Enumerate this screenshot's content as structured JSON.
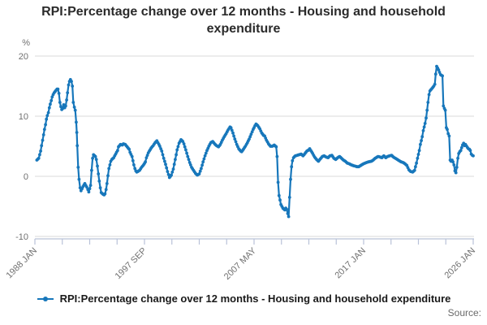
{
  "header": {
    "title": "RPI:Percentage change over 12 months - Housing and household expenditure"
  },
  "footer": {
    "source_label": "Source:"
  },
  "colors": {
    "series_blue": "#1777bb",
    "gridline": "#d9d9d9",
    "axis": "#b9c2d8",
    "tick_text": "#707070",
    "title_text": "#2b2b2b",
    "legend_text": "#1a1a1a",
    "source_text": "#6a6a6a",
    "background": "#ffffff"
  },
  "chart_data": {
    "type": "line",
    "title": "RPI:Percentage change over 12 months - Housing and household expenditure",
    "unit_label": "%",
    "xlabel": "",
    "ylabel": "%",
    "y_ticks": [
      20,
      10,
      0,
      -10
    ],
    "ylim": [
      -10.4,
      20.1
    ],
    "x_range_years": [
      1988.0,
      2026.1
    ],
    "x_tick_labels": [
      "1988 JAN",
      "1997 SEP",
      "2007 MAY",
      "2017 JAN",
      "2026 JAN"
    ],
    "x_minor_tick_count": 17,
    "grid": "horizontal",
    "legend_position": "bottom",
    "marker": "circle",
    "series": [
      {
        "name": "RPI:Percentage change over 12 months - Housing and household expenditure",
        "color": "#1777bb",
        "points": [
          [
            1988.17,
            2.7
          ],
          [
            1988.33,
            3.0
          ],
          [
            1988.5,
            4.2
          ],
          [
            1988.58,
            5.1
          ],
          [
            1988.67,
            6.0
          ],
          [
            1988.75,
            6.9
          ],
          [
            1988.83,
            7.8
          ],
          [
            1988.92,
            8.6
          ],
          [
            1989.0,
            9.5
          ],
          [
            1989.08,
            10.1
          ],
          [
            1989.17,
            10.6
          ],
          [
            1989.25,
            11.4
          ],
          [
            1989.33,
            12.0
          ],
          [
            1989.42,
            12.6
          ],
          [
            1989.5,
            13.2
          ],
          [
            1989.58,
            13.6
          ],
          [
            1989.67,
            13.9
          ],
          [
            1989.75,
            14.1
          ],
          [
            1989.83,
            14.3
          ],
          [
            1989.92,
            14.5
          ],
          [
            1990.0,
            14.5
          ],
          [
            1990.08,
            13.8
          ],
          [
            1990.17,
            12.3
          ],
          [
            1990.25,
            11.6
          ],
          [
            1990.33,
            11.1
          ],
          [
            1990.42,
            11.3
          ],
          [
            1990.5,
            11.9
          ],
          [
            1990.58,
            11.4
          ],
          [
            1990.67,
            11.7
          ],
          [
            1990.75,
            12.7
          ],
          [
            1990.83,
            13.9
          ],
          [
            1990.92,
            15.2
          ],
          [
            1991.0,
            15.8
          ],
          [
            1991.08,
            16.1
          ],
          [
            1991.17,
            15.8
          ],
          [
            1991.25,
            15.0
          ],
          [
            1991.33,
            12.3
          ],
          [
            1991.42,
            11.5
          ],
          [
            1991.5,
            11.0
          ],
          [
            1991.58,
            9.0
          ],
          [
            1991.63,
            7.3
          ],
          [
            1991.67,
            5.1
          ],
          [
            1991.75,
            1.5
          ],
          [
            1991.83,
            -0.5
          ],
          [
            1991.92,
            -1.9
          ],
          [
            1992.0,
            -2.4
          ],
          [
            1992.17,
            -1.7
          ],
          [
            1992.33,
            -1.2
          ],
          [
            1992.5,
            -1.8
          ],
          [
            1992.67,
            -2.6
          ],
          [
            1992.83,
            -1.5
          ],
          [
            1992.92,
            1.0
          ],
          [
            1993.0,
            3.0
          ],
          [
            1993.08,
            3.6
          ],
          [
            1993.25,
            3.3
          ],
          [
            1993.33,
            2.8
          ],
          [
            1993.42,
            1.7
          ],
          [
            1993.5,
            0.4
          ],
          [
            1993.58,
            -0.8
          ],
          [
            1993.67,
            -1.9
          ],
          [
            1993.75,
            -2.7
          ],
          [
            1993.92,
            -3.0
          ],
          [
            1994.0,
            -3.1
          ],
          [
            1994.08,
            -2.9
          ],
          [
            1994.17,
            -2.2
          ],
          [
            1994.25,
            -1.2
          ],
          [
            1994.33,
            0.1
          ],
          [
            1994.42,
            1.3
          ],
          [
            1994.5,
            1.9
          ],
          [
            1994.58,
            2.5
          ],
          [
            1994.67,
            2.8
          ],
          [
            1994.83,
            3.1
          ],
          [
            1994.92,
            3.4
          ],
          [
            1995.0,
            3.7
          ],
          [
            1995.08,
            4.0
          ],
          [
            1995.17,
            4.3
          ],
          [
            1995.25,
            4.9
          ],
          [
            1995.42,
            5.3
          ],
          [
            1995.58,
            5.2
          ],
          [
            1995.67,
            5.4
          ],
          [
            1995.83,
            5.3
          ],
          [
            1995.92,
            5.1
          ],
          [
            1996.0,
            4.9
          ],
          [
            1996.17,
            4.5
          ],
          [
            1996.25,
            4.0
          ],
          [
            1996.42,
            3.3
          ],
          [
            1996.5,
            2.6
          ],
          [
            1996.58,
            1.9
          ],
          [
            1996.67,
            1.3
          ],
          [
            1996.75,
            0.9
          ],
          [
            1996.83,
            0.7
          ],
          [
            1996.92,
            0.8
          ],
          [
            1997.08,
            1.0
          ],
          [
            1997.25,
            1.5
          ],
          [
            1997.42,
            1.9
          ],
          [
            1997.58,
            2.4
          ],
          [
            1997.67,
            3.1
          ],
          [
            1997.83,
            3.9
          ],
          [
            1997.92,
            4.2
          ],
          [
            1998.08,
            4.7
          ],
          [
            1998.25,
            5.1
          ],
          [
            1998.42,
            5.6
          ],
          [
            1998.58,
            5.9
          ],
          [
            1998.67,
            5.6
          ],
          [
            1998.83,
            5.0
          ],
          [
            1999.0,
            4.2
          ],
          [
            1999.17,
            3.0
          ],
          [
            1999.33,
            2.0
          ],
          [
            1999.5,
            0.8
          ],
          [
            1999.67,
            -0.2
          ],
          [
            1999.83,
            0.2
          ],
          [
            2000.0,
            1.2
          ],
          [
            2000.17,
            2.8
          ],
          [
            2000.33,
            4.4
          ],
          [
            2000.5,
            5.5
          ],
          [
            2000.67,
            6.1
          ],
          [
            2000.83,
            5.8
          ],
          [
            2000.92,
            5.4
          ],
          [
            2001.08,
            4.4
          ],
          [
            2001.25,
            3.3
          ],
          [
            2001.42,
            2.3
          ],
          [
            2001.58,
            1.5
          ],
          [
            2001.75,
            1.0
          ],
          [
            2001.92,
            0.5
          ],
          [
            2002.08,
            0.2
          ],
          [
            2002.25,
            0.4
          ],
          [
            2002.42,
            1.3
          ],
          [
            2002.58,
            2.4
          ],
          [
            2002.75,
            3.4
          ],
          [
            2002.92,
            4.3
          ],
          [
            2003.08,
            5.0
          ],
          [
            2003.25,
            5.6
          ],
          [
            2003.42,
            5.8
          ],
          [
            2003.58,
            5.4
          ],
          [
            2003.75,
            5.1
          ],
          [
            2003.92,
            4.9
          ],
          [
            2004.08,
            5.3
          ],
          [
            2004.25,
            6.0
          ],
          [
            2004.42,
            6.6
          ],
          [
            2004.58,
            7.1
          ],
          [
            2004.75,
            7.7
          ],
          [
            2004.92,
            8.2
          ],
          [
            2005.0,
            8.1
          ],
          [
            2005.17,
            7.2
          ],
          [
            2005.33,
            6.2
          ],
          [
            2005.5,
            5.3
          ],
          [
            2005.67,
            4.6
          ],
          [
            2005.83,
            4.2
          ],
          [
            2005.92,
            4.1
          ],
          [
            2006.08,
            4.5
          ],
          [
            2006.25,
            5.0
          ],
          [
            2006.42,
            5.6
          ],
          [
            2006.58,
            6.2
          ],
          [
            2006.75,
            7.0
          ],
          [
            2006.92,
            7.8
          ],
          [
            2007.08,
            8.4
          ],
          [
            2007.17,
            8.7
          ],
          [
            2007.33,
            8.4
          ],
          [
            2007.5,
            7.9
          ],
          [
            2007.67,
            7.2
          ],
          [
            2007.83,
            6.8
          ],
          [
            2007.92,
            6.7
          ],
          [
            2008.08,
            6.0
          ],
          [
            2008.25,
            5.4
          ],
          [
            2008.42,
            5.0
          ],
          [
            2008.58,
            5.0
          ],
          [
            2008.75,
            5.2
          ],
          [
            2008.92,
            4.9
          ],
          [
            2009.0,
            3.3
          ],
          [
            2009.08,
            -1.0
          ],
          [
            2009.17,
            -3.2
          ],
          [
            2009.33,
            -4.7
          ],
          [
            2009.5,
            -5.3
          ],
          [
            2009.67,
            -5.6
          ],
          [
            2009.75,
            -5.3
          ],
          [
            2009.83,
            -5.5
          ],
          [
            2009.92,
            -6.2
          ],
          [
            2010.0,
            -6.7
          ],
          [
            2010.08,
            -3.5
          ],
          [
            2010.17,
            -0.5
          ],
          [
            2010.25,
            1.6
          ],
          [
            2010.33,
            2.6
          ],
          [
            2010.42,
            3.1
          ],
          [
            2010.58,
            3.4
          ],
          [
            2010.75,
            3.5
          ],
          [
            2010.92,
            3.6
          ],
          [
            2011.08,
            3.7
          ],
          [
            2011.25,
            3.4
          ],
          [
            2011.42,
            3.8
          ],
          [
            2011.58,
            4.2
          ],
          [
            2011.75,
            4.4
          ],
          [
            2011.83,
            4.6
          ],
          [
            2011.92,
            4.3
          ],
          [
            2012.08,
            3.8
          ],
          [
            2012.25,
            3.2
          ],
          [
            2012.42,
            2.8
          ],
          [
            2012.58,
            2.5
          ],
          [
            2012.75,
            2.9
          ],
          [
            2012.92,
            3.3
          ],
          [
            2013.08,
            3.4
          ],
          [
            2013.25,
            3.2
          ],
          [
            2013.42,
            3.1
          ],
          [
            2013.58,
            3.4
          ],
          [
            2013.75,
            3.5
          ],
          [
            2013.92,
            3.0
          ],
          [
            2014.08,
            2.8
          ],
          [
            2014.25,
            3.1
          ],
          [
            2014.42,
            3.3
          ],
          [
            2014.58,
            3.0
          ],
          [
            2014.75,
            2.7
          ],
          [
            2014.92,
            2.5
          ],
          [
            2015.08,
            2.2
          ],
          [
            2015.25,
            2.1
          ],
          [
            2015.42,
            1.9
          ],
          [
            2015.58,
            1.8
          ],
          [
            2015.75,
            1.7
          ],
          [
            2015.92,
            1.6
          ],
          [
            2016.08,
            1.6
          ],
          [
            2016.25,
            1.8
          ],
          [
            2016.5,
            2.1
          ],
          [
            2016.75,
            2.3
          ],
          [
            2016.92,
            2.4
          ],
          [
            2017.17,
            2.5
          ],
          [
            2017.33,
            2.7
          ],
          [
            2017.5,
            3.0
          ],
          [
            2017.75,
            3.3
          ],
          [
            2017.92,
            3.2
          ],
          [
            2018.08,
            3.1
          ],
          [
            2018.25,
            3.4
          ],
          [
            2018.42,
            3.1
          ],
          [
            2018.58,
            3.3
          ],
          [
            2018.75,
            3.4
          ],
          [
            2018.92,
            3.5
          ],
          [
            2019.08,
            3.2
          ],
          [
            2019.25,
            3.0
          ],
          [
            2019.42,
            2.8
          ],
          [
            2019.58,
            2.6
          ],
          [
            2019.75,
            2.4
          ],
          [
            2019.92,
            2.3
          ],
          [
            2020.08,
            2.1
          ],
          [
            2020.25,
            1.8
          ],
          [
            2020.42,
            1.1
          ],
          [
            2020.58,
            0.8
          ],
          [
            2020.75,
            0.7
          ],
          [
            2020.92,
            1.0
          ],
          [
            2021.08,
            2.2
          ],
          [
            2021.17,
            3.0
          ],
          [
            2021.33,
            4.3
          ],
          [
            2021.42,
            5.3
          ],
          [
            2021.58,
            6.6
          ],
          [
            2021.67,
            7.6
          ],
          [
            2021.83,
            8.8
          ],
          [
            2021.92,
            9.7
          ],
          [
            2022.0,
            11.0
          ],
          [
            2022.08,
            12.3
          ],
          [
            2022.17,
            13.6
          ],
          [
            2022.25,
            14.2
          ],
          [
            2022.42,
            14.6
          ],
          [
            2022.58,
            15.0
          ],
          [
            2022.67,
            15.3
          ],
          [
            2022.75,
            17.0
          ],
          [
            2022.83,
            18.3
          ],
          [
            2022.92,
            18.0
          ],
          [
            2023.0,
            17.7
          ],
          [
            2023.08,
            17.3
          ],
          [
            2023.17,
            16.9
          ],
          [
            2023.33,
            16.7
          ],
          [
            2023.42,
            11.7
          ],
          [
            2023.5,
            11.3
          ],
          [
            2023.58,
            11.0
          ],
          [
            2023.67,
            8.1
          ],
          [
            2023.75,
            7.8
          ],
          [
            2023.83,
            7.1
          ],
          [
            2023.92,
            6.7
          ],
          [
            2024.0,
            2.7
          ],
          [
            2024.08,
            2.5
          ],
          [
            2024.17,
            2.7
          ],
          [
            2024.25,
            2.4
          ],
          [
            2024.33,
            1.9
          ],
          [
            2024.42,
            0.9
          ],
          [
            2024.5,
            0.6
          ],
          [
            2024.58,
            1.5
          ],
          [
            2024.67,
            3.0
          ],
          [
            2024.75,
            3.8
          ],
          [
            2024.83,
            4.1
          ],
          [
            2024.92,
            4.3
          ],
          [
            2025.08,
            5.2
          ],
          [
            2025.17,
            5.5
          ],
          [
            2025.25,
            5.1
          ],
          [
            2025.33,
            5.3
          ],
          [
            2025.5,
            4.8
          ],
          [
            2025.58,
            4.6
          ],
          [
            2025.67,
            4.5
          ],
          [
            2025.75,
            4.3
          ],
          [
            2025.83,
            3.7
          ],
          [
            2025.92,
            3.5
          ],
          [
            2026.0,
            3.4
          ]
        ]
      }
    ]
  }
}
